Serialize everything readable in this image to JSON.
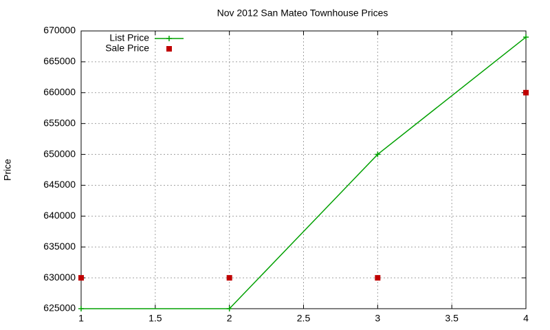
{
  "chart_data": {
    "type": "line",
    "title": "Nov 2012 San Mateo Townhouse Prices",
    "y_label": "Price",
    "x": [
      1,
      2,
      3,
      4
    ],
    "series": [
      {
        "name": "List Price",
        "color": "#00a000",
        "style": "linespoints",
        "values": [
          625000,
          625000,
          650000,
          669000
        ]
      },
      {
        "name": "Sale Price",
        "color": "#c00000",
        "style": "points",
        "values": [
          630000,
          630000,
          630000,
          660000
        ]
      }
    ],
    "xlim": [
      1,
      4
    ],
    "xticks": [
      1,
      1.5,
      2,
      2.5,
      3,
      3.5,
      4
    ],
    "ylim": [
      625000,
      670000
    ],
    "yticks": [
      625000,
      630000,
      635000,
      640000,
      645000,
      650000,
      655000,
      660000,
      665000,
      670000
    ],
    "grid": true,
    "legend": "top-left"
  }
}
